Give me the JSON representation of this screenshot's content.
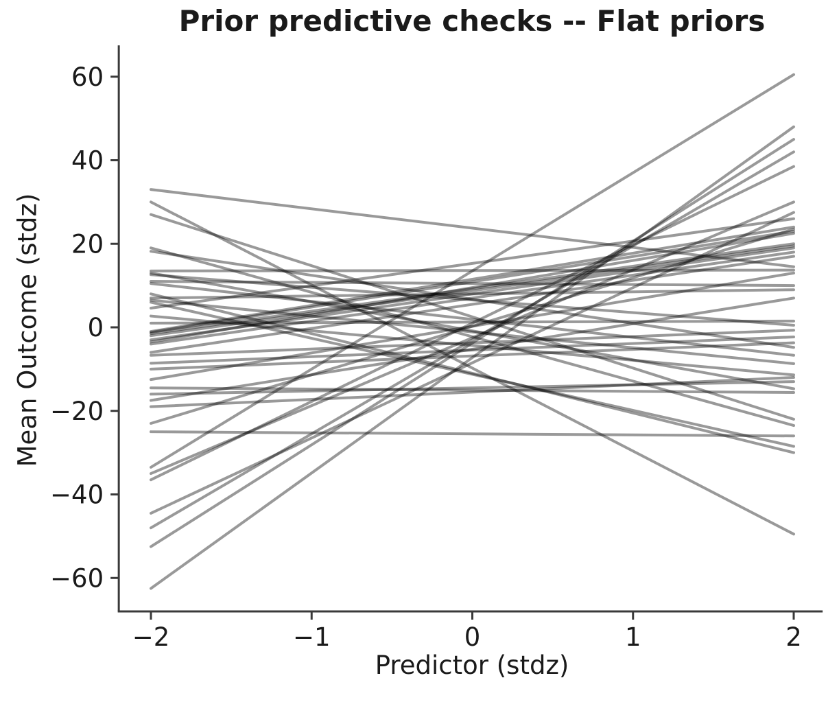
{
  "chart_data": {
    "type": "line",
    "title": "Prior predictive checks -- Flat priors",
    "xlabel": "Predictor (stdz)",
    "ylabel": "Mean Outcome (stdz)",
    "description": "Prior predictive draws: straight regression lines sampled from flat priors, plotted from x = -2 to x = 2",
    "n_lines": 42,
    "x_endpoints": [
      -2,
      2
    ],
    "xticks": [
      -2,
      -1,
      0,
      1,
      2
    ],
    "xtick_labels": [
      "−2",
      "−1",
      "0",
      "1",
      "2"
    ],
    "yticks": [
      -60,
      -40,
      -20,
      0,
      20,
      40,
      60
    ],
    "ytick_labels": [
      "−60",
      "−40",
      "−20",
      "0",
      "20",
      "40",
      "60"
    ],
    "xlim": [
      -2.2,
      2.18
    ],
    "ylim": [
      -68,
      67.5
    ],
    "grid": false,
    "legend": null,
    "style": {
      "line_color": "#000000",
      "line_opacity": 0.4,
      "line_width": 4,
      "spine_color": "#3a3a3a",
      "text_color": "#1a1a1a",
      "background": "#ffffff"
    },
    "lines_note": "each entry is [y at x=-2, y at x=2] in data units",
    "lines": [
      [
        -62.5,
        48
      ],
      [
        -52.5,
        45
      ],
      [
        -48,
        42
      ],
      [
        -33.5,
        60.5
      ],
      [
        -36.5,
        38.5
      ],
      [
        -35,
        30
      ],
      [
        -44.5,
        27.5
      ],
      [
        33,
        14.5
      ],
      [
        30,
        -49.5
      ],
      [
        27,
        -22
      ],
      [
        19,
        -23.5
      ],
      [
        18.2,
        -4.8
      ],
      [
        13.5,
        13.7
      ],
      [
        13,
        -14.7
      ],
      [
        12.6,
        0.5
      ],
      [
        11,
        10
      ],
      [
        10.5,
        -6.7
      ],
      [
        8,
        -30
      ],
      [
        7,
        9
      ],
      [
        6.5,
        -8.7
      ],
      [
        6,
        -28.5
      ],
      [
        4.6,
        26
      ],
      [
        2.7,
        -11.4
      ],
      [
        1,
        1.5
      ],
      [
        -1,
        24
      ],
      [
        -1.2,
        23
      ],
      [
        -1.5,
        20
      ],
      [
        -2,
        19.5
      ],
      [
        -3,
        19
      ],
      [
        -3.5,
        22.5
      ],
      [
        -4,
        18
      ],
      [
        -6,
        17
      ],
      [
        -6.7,
        -0.7
      ],
      [
        -8.6,
        -2.3
      ],
      [
        -10,
        -3.7
      ],
      [
        -12.5,
        13
      ],
      [
        -14.5,
        -15.6
      ],
      [
        -16,
        -13
      ],
      [
        -17.5,
        7
      ],
      [
        -19,
        -12
      ],
      [
        -23,
        23.5
      ],
      [
        -25,
        -26
      ]
    ]
  }
}
